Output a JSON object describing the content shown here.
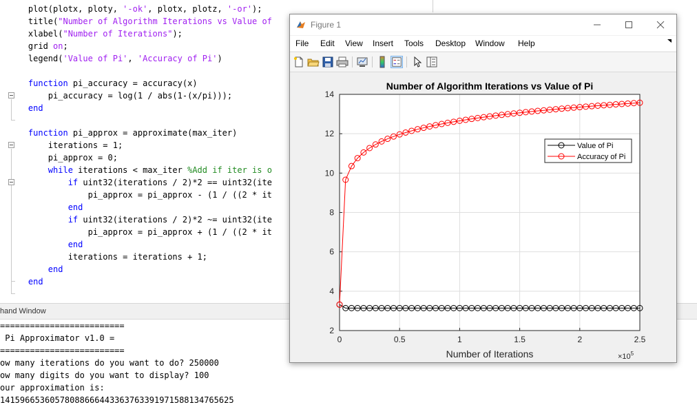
{
  "editor": {
    "lines": [
      {
        "top": "",
        "segs": []
      },
      {
        "segs": [
          {
            "t": "    plot(plotx, ploty, "
          },
          {
            "t": "'-ok'",
            "c": "str"
          },
          {
            "t": ", plotx, plotz, "
          },
          {
            "t": "'-or'",
            "c": "str"
          },
          {
            "t": ");"
          }
        ]
      },
      {
        "segs": [
          {
            "t": "    title("
          },
          {
            "t": "\"Number of Algorithm Iterations vs Value of",
            "c": "str"
          }
        ]
      },
      {
        "segs": [
          {
            "t": "    xlabel("
          },
          {
            "t": "\"Number of Iterations\"",
            "c": "str"
          },
          {
            "t": ");"
          }
        ]
      },
      {
        "segs": [
          {
            "t": "    grid "
          },
          {
            "t": "on",
            "c": "str"
          },
          {
            "t": ";"
          }
        ]
      },
      {
        "segs": [
          {
            "t": "    legend("
          },
          {
            "t": "'Value of Pi'",
            "c": "str"
          },
          {
            "t": ", "
          },
          {
            "t": "'Accuracy of Pi'",
            "c": "str"
          },
          {
            "t": ")"
          }
        ]
      },
      {
        "segs": []
      },
      {
        "segs": [
          {
            "t": "    "
          },
          {
            "t": "function",
            "c": "kw"
          },
          {
            "t": " pi_accuracy = accuracy(x)"
          }
        ]
      },
      {
        "segs": [
          {
            "t": "        pi_accuracy = log(1 / abs(1-(x/pi)));"
          }
        ]
      },
      {
        "segs": [
          {
            "t": "    "
          },
          {
            "t": "end",
            "c": "kw"
          }
        ]
      },
      {
        "segs": []
      },
      {
        "segs": [
          {
            "t": "    "
          },
          {
            "t": "function",
            "c": "kw"
          },
          {
            "t": " pi_approx = approximate(max_iter)"
          }
        ]
      },
      {
        "segs": [
          {
            "t": "        iterations = 1;"
          }
        ]
      },
      {
        "segs": [
          {
            "t": "        pi_approx = 0;"
          }
        ]
      },
      {
        "segs": [
          {
            "t": "        "
          },
          {
            "t": "while",
            "c": "kw"
          },
          {
            "t": " iterations < max_iter "
          },
          {
            "t": "%Add if iter is o",
            "c": "cmt"
          }
        ]
      },
      {
        "segs": [
          {
            "t": "            "
          },
          {
            "t": "if",
            "c": "kw"
          },
          {
            "t": " uint32(iterations / 2)*2 == uint32(ite"
          }
        ]
      },
      {
        "segs": [
          {
            "t": "                pi_approx = pi_approx - (1 / ((2 * it"
          }
        ]
      },
      {
        "segs": [
          {
            "t": "            "
          },
          {
            "t": "end",
            "c": "kw"
          }
        ]
      },
      {
        "segs": [
          {
            "t": "            "
          },
          {
            "t": "if",
            "c": "kw"
          },
          {
            "t": " uint32(iterations / 2)*2 ~= uint32(ite"
          }
        ]
      },
      {
        "segs": [
          {
            "t": "                pi_approx = pi_approx + (1 / ((2 * it"
          }
        ]
      },
      {
        "segs": [
          {
            "t": "            "
          },
          {
            "t": "end",
            "c": "kw"
          }
        ]
      },
      {
        "segs": [
          {
            "t": "            iterations = iterations + 1;"
          }
        ]
      },
      {
        "segs": [
          {
            "t": "        "
          },
          {
            "t": "end",
            "c": "kw"
          }
        ]
      },
      {
        "segs": [
          {
            "t": "    "
          },
          {
            "t": "end",
            "c": "kw"
          }
        ]
      }
    ]
  },
  "command_window": {
    "title": "hand Window",
    "lines": [
      "=========================",
      " Pi Approximator v1.0 =",
      "=========================",
      "ow many iterations do you want to do? 250000",
      "ow many digits do you want to display? 100",
      "our approximation is:",
      "1415966536057808866644336376339197158813476562​5"
    ]
  },
  "figure": {
    "window_title": "Figure 1",
    "menu": [
      "File",
      "Edit",
      "View",
      "Insert",
      "Tools",
      "Desktop",
      "Window",
      "Help"
    ],
    "toolbar_icons": [
      "new-figure-icon",
      "open-file-icon",
      "save-icon",
      "print-icon",
      "link-plot-icon",
      "insert-colorbar-icon",
      "insert-legend-icon",
      "edit-plot-icon",
      "property-inspector-icon"
    ]
  },
  "chart_data": {
    "type": "line",
    "title": "Number of Algorithm Iterations vs Value of Pi",
    "xlabel": "Number of Iterations",
    "ylabel": "",
    "x_exponent_label": "×10",
    "x_exponent": "5",
    "xlim": [
      0,
      250000
    ],
    "ylim": [
      2,
      14
    ],
    "xticks": [
      0,
      50000,
      100000,
      150000,
      200000,
      250000
    ],
    "xtick_labels": [
      "0",
      "0.5",
      "1",
      "1.5",
      "2",
      "2.5"
    ],
    "yticks": [
      2,
      4,
      6,
      8,
      10,
      12,
      14
    ],
    "ytick_labels": [
      "2",
      "4",
      "6",
      "8",
      "10",
      "12",
      "14"
    ],
    "grid": true,
    "legend_position": "top-right",
    "series": [
      {
        "name": "Value of Pi",
        "color": "#000000",
        "marker": "circle",
        "formula": "pi"
      },
      {
        "name": "Accuracy of Pi",
        "color": "#ff0000",
        "marker": "circle",
        "formula": "accuracy"
      }
    ]
  }
}
